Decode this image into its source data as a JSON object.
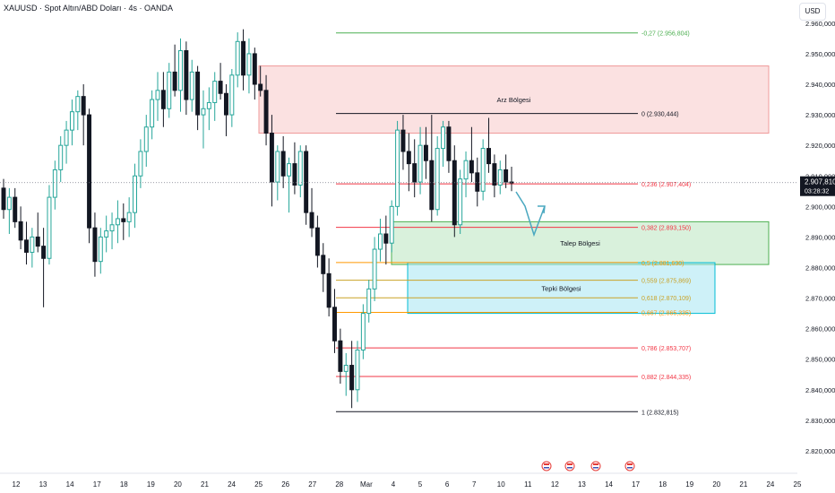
{
  "header": {
    "title": "XAUUSD · Spot Altın/ABD Doları · 4s · OANDA",
    "currency_button": "USD"
  },
  "colors": {
    "up": "#26a69a",
    "down": "#131722",
    "supply_zone": "#f7c9c9",
    "demand_zone": "#b9e5bf",
    "reaction_zone": "#a6e6f2",
    "fib_green": "#4caf50",
    "fib_black": "#131722",
    "fib_red": "#f23645",
    "fib_orange": "#ff9800",
    "fib_yellow": "#c9a227",
    "arrow": "#4aa8c0",
    "price_label_bg": "#131722"
  },
  "chart_data": {
    "type": "candlestick",
    "symbol": "XAUUSD",
    "timeframe": "4s",
    "y_axis": {
      "range": [
        2815,
        2967
      ],
      "ticks": [
        "2.820,000",
        "2.830,000",
        "2.840,000",
        "2.850,000",
        "2.860,000",
        "2.870,000",
        "2.880,000",
        "2.890,000",
        "2.900,000",
        "2.910,000",
        "2.920,000",
        "2.930,000",
        "2.940,000",
        "2.950,000",
        "2.960,000"
      ],
      "tick_values": [
        2820,
        2830,
        2840,
        2850,
        2860,
        2870,
        2880,
        2890,
        2900,
        2910,
        2920,
        2930,
        2940,
        2950,
        2960
      ]
    },
    "x_axis": {
      "ticks": [
        "12",
        "13",
        "14",
        "17",
        "18",
        "19",
        "20",
        "21",
        "24",
        "25",
        "26",
        "27",
        "28",
        "Mar",
        "4",
        "5",
        "6",
        "7",
        "10",
        "11",
        "12",
        "13",
        "14",
        "17",
        "18",
        "19",
        "20",
        "21",
        "24",
        "25"
      ]
    },
    "current_price": {
      "label": "2.907,810",
      "timer": "03:28:32",
      "value": 2907.81
    },
    "candles": [
      [
        2906,
        2909,
        2896,
        2899
      ],
      [
        2899,
        2906,
        2891,
        2903
      ],
      [
        2903,
        2906,
        2893,
        2895
      ],
      [
        2895,
        2900,
        2886,
        2889
      ],
      [
        2889,
        2895,
        2881,
        2885
      ],
      [
        2885,
        2893,
        2880,
        2890
      ],
      [
        2890,
        2898,
        2885,
        2887
      ],
      [
        2887,
        2893,
        2867,
        2883
      ],
      [
        2883,
        2907,
        2881,
        2903
      ],
      [
        2903,
        2915,
        2899,
        2912
      ],
      [
        2912,
        2923,
        2908,
        2920
      ],
      [
        2920,
        2928,
        2914,
        2925
      ],
      [
        2925,
        2935,
        2920,
        2931
      ],
      [
        2931,
        2938,
        2925,
        2936
      ],
      [
        2936,
        2940,
        2920,
        2930
      ],
      [
        2930,
        2932,
        2888,
        2893
      ],
      [
        2893,
        2898,
        2877,
        2882
      ],
      [
        2882,
        2893,
        2878,
        2890
      ],
      [
        2890,
        2897,
        2885,
        2892
      ],
      [
        2892,
        2898,
        2886,
        2894
      ],
      [
        2894,
        2902,
        2888,
        2896
      ],
      [
        2896,
        2901,
        2889,
        2895
      ],
      [
        2895,
        2903,
        2890,
        2898
      ],
      [
        2898,
        2914,
        2893,
        2910
      ],
      [
        2910,
        2922,
        2906,
        2918
      ],
      [
        2918,
        2930,
        2913,
        2926
      ],
      [
        2926,
        2938,
        2922,
        2935
      ],
      [
        2935,
        2944,
        2928,
        2938
      ],
      [
        2938,
        2944,
        2926,
        2932
      ],
      [
        2932,
        2947,
        2929,
        2944
      ],
      [
        2944,
        2953,
        2936,
        2938
      ],
      [
        2938,
        2955,
        2931,
        2951
      ],
      [
        2951,
        2954,
        2930,
        2935
      ],
      [
        2935,
        2948,
        2931,
        2944
      ],
      [
        2944,
        2946,
        2925,
        2930
      ],
      [
        2930,
        2938,
        2919,
        2932
      ],
      [
        2932,
        2939,
        2925,
        2934
      ],
      [
        2934,
        2944,
        2928,
        2941
      ],
      [
        2941,
        2947,
        2935,
        2937
      ],
      [
        2937,
        2940,
        2923,
        2930
      ],
      [
        2930,
        2945,
        2926,
        2943
      ],
      [
        2943,
        2957,
        2939,
        2954
      ],
      [
        2954,
        2958,
        2938,
        2943
      ],
      [
        2943,
        2955,
        2937,
        2950
      ],
      [
        2950,
        2952,
        2935,
        2940
      ],
      [
        2940,
        2946,
        2936,
        2938
      ],
      [
        2938,
        2943,
        2920,
        2924
      ],
      [
        2924,
        2930,
        2900,
        2908
      ],
      [
        2908,
        2920,
        2902,
        2918
      ],
      [
        2918,
        2923,
        2906,
        2910
      ],
      [
        2910,
        2916,
        2898,
        2914
      ],
      [
        2914,
        2921,
        2904,
        2907
      ],
      [
        2907,
        2920,
        2903,
        2918
      ],
      [
        2918,
        2920,
        2894,
        2898
      ],
      [
        2898,
        2906,
        2890,
        2893
      ],
      [
        2893,
        2897,
        2880,
        2884
      ],
      [
        2884,
        2888,
        2872,
        2878
      ],
      [
        2878,
        2883,
        2864,
        2867
      ],
      [
        2867,
        2873,
        2852,
        2856
      ],
      [
        2856,
        2860,
        2842,
        2846
      ],
      [
        2846,
        2852,
        2838,
        2848
      ],
      [
        2848,
        2856,
        2834,
        2840
      ],
      [
        2840,
        2856,
        2836,
        2853
      ],
      [
        2853,
        2868,
        2850,
        2865
      ],
      [
        2865,
        2876,
        2862,
        2873
      ],
      [
        2873,
        2890,
        2869,
        2886
      ],
      [
        2886,
        2896,
        2882,
        2891
      ],
      [
        2891,
        2897,
        2881,
        2888
      ],
      [
        2888,
        2902,
        2885,
        2900
      ],
      [
        2900,
        2928,
        2897,
        2925
      ],
      [
        2925,
        2930,
        2912,
        2918
      ],
      [
        2918,
        2924,
        2905,
        2914
      ],
      [
        2914,
        2922,
        2903,
        2908
      ],
      [
        2908,
        2926,
        2904,
        2920
      ],
      [
        2920,
        2926,
        2909,
        2915
      ],
      [
        2915,
        2930,
        2895,
        2899
      ],
      [
        2899,
        2923,
        2897,
        2919
      ],
      [
        2919,
        2928,
        2913,
        2926
      ],
      [
        2926,
        2928,
        2911,
        2915
      ],
      [
        2915,
        2920,
        2890,
        2894
      ],
      [
        2894,
        2912,
        2891,
        2909
      ],
      [
        2909,
        2918,
        2903,
        2915
      ],
      [
        2915,
        2926,
        2908,
        2911
      ],
      [
        2911,
        2916,
        2900,
        2905
      ],
      [
        2905,
        2922,
        2902,
        2919
      ],
      [
        2919,
        2929,
        2911,
        2914
      ],
      [
        2914,
        2917,
        2903,
        2907
      ],
      [
        2907,
        2915,
        2904,
        2912
      ],
      [
        2912,
        2917,
        2906,
        2908
      ],
      [
        2908,
        2913,
        2905,
        2907.81
      ]
    ],
    "fibonacci": [
      {
        "ratio_label": "-0,27 (2.956,804)",
        "value": 2956.804,
        "color": "green"
      },
      {
        "ratio_label": "0 (2.930,444)",
        "value": 2930.444,
        "color": "black"
      },
      {
        "ratio_label": "0,236 (2.907,404)",
        "value": 2907.404,
        "color": "red"
      },
      {
        "ratio_label": "0,382 (2.893,150)",
        "value": 2893.15,
        "color": "red"
      },
      {
        "ratio_label": "0,5 (2.881,630)",
        "value": 2881.63,
        "color": "orange"
      },
      {
        "ratio_label": "0,559 (2.875,869)",
        "value": 2875.869,
        "color": "yellow"
      },
      {
        "ratio_label": "0,618 (2.870,109)",
        "value": 2870.109,
        "color": "yellow"
      },
      {
        "ratio_label": "0,667 (2.865,335)",
        "value": 2865.335,
        "color": "orange"
      },
      {
        "ratio_label": "0,786 (2.853,707)",
        "value": 2853.707,
        "color": "red"
      },
      {
        "ratio_label": "0,882 (2.844,335)",
        "value": 2844.335,
        "color": "red"
      },
      {
        "ratio_label": "1 (2.832,815)",
        "value": 2832.815,
        "color": "black"
      }
    ],
    "zones": [
      {
        "label": "Arz Bölgesi",
        "top": 2946,
        "bottom": 2924,
        "kind": "supply"
      },
      {
        "label": "Talep Bölgesi",
        "top": 2895,
        "bottom": 2881,
        "kind": "demand"
      },
      {
        "label": "Tepki Bölgesi",
        "top": 2881.6,
        "bottom": 2865,
        "kind": "reaction"
      }
    ],
    "projection": {
      "path": [
        [
          2907,
          2907
        ],
        [
          2908,
          2900
        ],
        [
          2909,
          2888
        ],
        [
          2910,
          2899
        ]
      ]
    }
  }
}
